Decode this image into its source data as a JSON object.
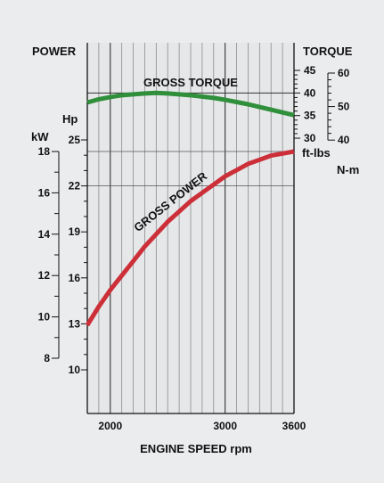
{
  "chart_data": {
    "type": "line",
    "title": "",
    "xlabel": "ENGINE SPEED rpm",
    "x_ticks": [
      2000,
      3000,
      3600
    ],
    "xlim": [
      1800,
      3600
    ],
    "grid": "vertical lines every 100 rpm",
    "left_axis": {
      "heading": "POWER",
      "kw_unit": "kW",
      "kw_ticks": [
        18,
        16,
        14,
        12,
        10,
        8
      ],
      "hp_unit": "Hp",
      "hp_ticks": [
        25,
        22,
        19,
        16,
        13,
        10
      ]
    },
    "right_axis": {
      "heading": "TORQUE",
      "ftlbs_unit": "ft-lbs",
      "ftlbs_ticks": [
        45,
        40,
        35,
        30
      ],
      "nm_unit": "N-m",
      "nm_ticks": [
        60,
        50,
        40
      ]
    },
    "series": [
      {
        "name": "GROSS TORQUE",
        "unit": "ft-lbs",
        "color": "#2f8f3a",
        "x": [
          1800,
          1900,
          2000,
          2100,
          2200,
          2300,
          2400,
          2500,
          2600,
          2700,
          2800,
          2900,
          3000,
          3100,
          3200,
          3300,
          3400,
          3500,
          3600
        ],
        "y": [
          37.9,
          38.6,
          39.1,
          39.5,
          39.7,
          39.9,
          40.0,
          39.9,
          39.7,
          39.5,
          39.2,
          38.9,
          38.5,
          38.0,
          37.5,
          36.9,
          36.3,
          35.7,
          35.1
        ]
      },
      {
        "name": "GROSS POWER",
        "unit": "kW",
        "color": "#cc2f38",
        "x": [
          1800,
          1900,
          2000,
          2100,
          2200,
          2300,
          2400,
          2500,
          2600,
          2700,
          2800,
          2900,
          3000,
          3100,
          3200,
          3300,
          3400,
          3500,
          3600
        ],
        "y": [
          9.6,
          10.5,
          11.3,
          12.0,
          12.7,
          13.4,
          14.0,
          14.6,
          15.1,
          15.6,
          16.0,
          16.4,
          16.8,
          17.1,
          17.4,
          17.6,
          17.8,
          17.9,
          18.0
        ]
      }
    ]
  }
}
